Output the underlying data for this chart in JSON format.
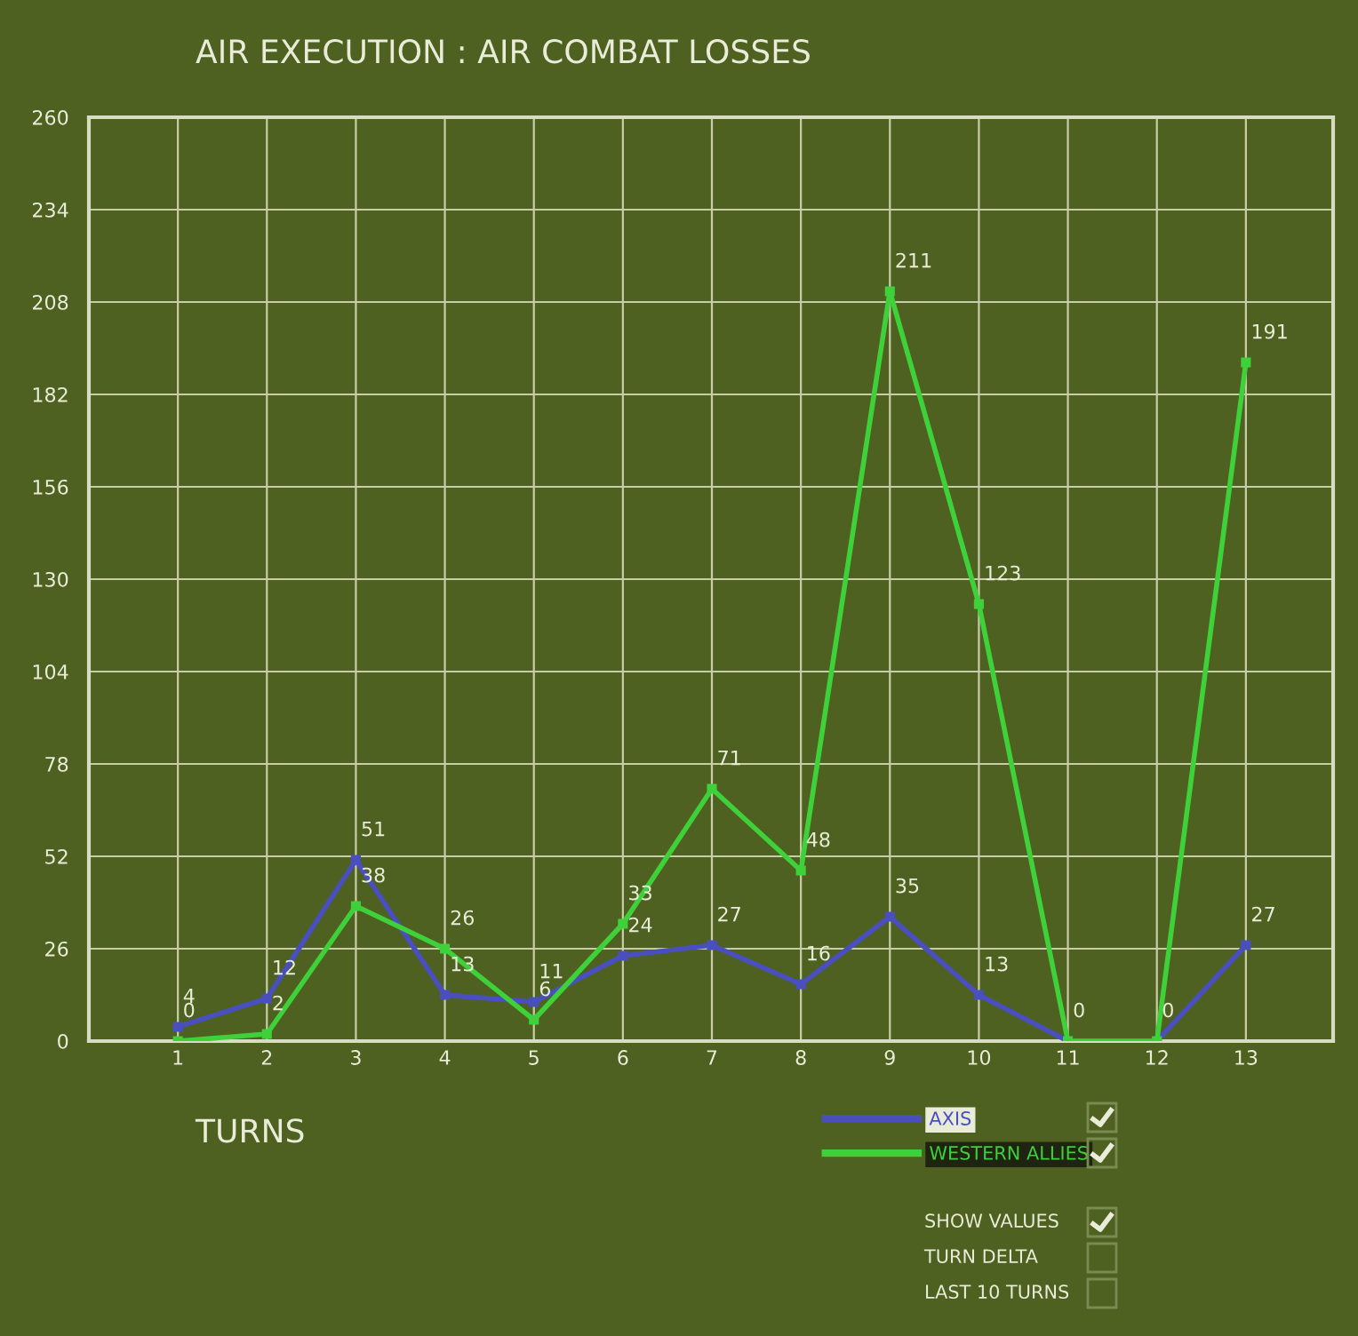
{
  "chart_data": {
    "type": "line",
    "title": "AIR EXECUTION : AIR COMBAT LOSSES",
    "xlabel": "TURNS",
    "categories": [
      "1",
      "2",
      "3",
      "4",
      "5",
      "6",
      "7",
      "8",
      "9",
      "10",
      "11",
      "12",
      "13"
    ],
    "series": [
      {
        "name": "AXIS",
        "color": "#4a4fc0",
        "values": [
          4,
          12,
          51,
          13,
          11,
          24,
          27,
          16,
          35,
          13,
          0,
          0,
          27
        ],
        "value_labels": [
          "4",
          "12",
          "51",
          "13",
          "11",
          "24",
          "27",
          "16",
          "35",
          "13",
          null,
          null,
          "27"
        ]
      },
      {
        "name": "WESTERN ALLIES",
        "color": "#3ed13a",
        "values": [
          0,
          2,
          38,
          26,
          6,
          33,
          71,
          48,
          211,
          123,
          0,
          0,
          191
        ],
        "value_labels": [
          "0",
          "2",
          "38",
          "26",
          "6",
          "33",
          "71",
          "48",
          "211",
          "123",
          "0",
          "0",
          "191"
        ]
      }
    ],
    "ylim": [
      0,
      260
    ],
    "yticks": [
      0,
      26,
      52,
      78,
      104,
      130,
      156,
      182,
      208,
      234,
      260
    ],
    "grid": true,
    "legend": "bottom right",
    "marker": "square",
    "line_style": "solid",
    "annotations": [
      "SHOW VALUES",
      "TURN DELTA",
      "LAST 10 TURNS"
    ]
  }
}
